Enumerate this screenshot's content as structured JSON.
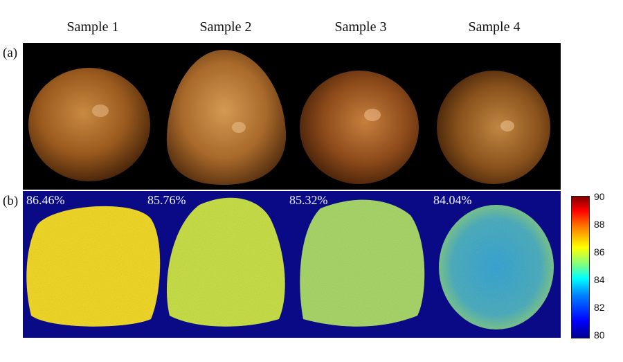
{
  "titles": [
    "Sample 1",
    "Sample 2",
    "Sample 3",
    "Sample 4"
  ],
  "panel_labels": {
    "a": "(a)",
    "b": "(b)"
  },
  "percentages": [
    "86.46%",
    "85.76%",
    "85.32%",
    "84.04%"
  ],
  "colorbar": {
    "ticks": [
      "90",
      "88",
      "86",
      "84",
      "82",
      "80"
    ],
    "min": 80,
    "max": 90
  },
  "colors": {
    "map_background": "#0a0a86",
    "sample_map_fill": [
      "#f2d92a",
      "#c9e048",
      "#a9d86a",
      "#5fb6b8"
    ],
    "fruit_fill": [
      "#9a5a1e",
      "#a8692a",
      "#8d4a1a",
      "#8a521c"
    ]
  }
}
